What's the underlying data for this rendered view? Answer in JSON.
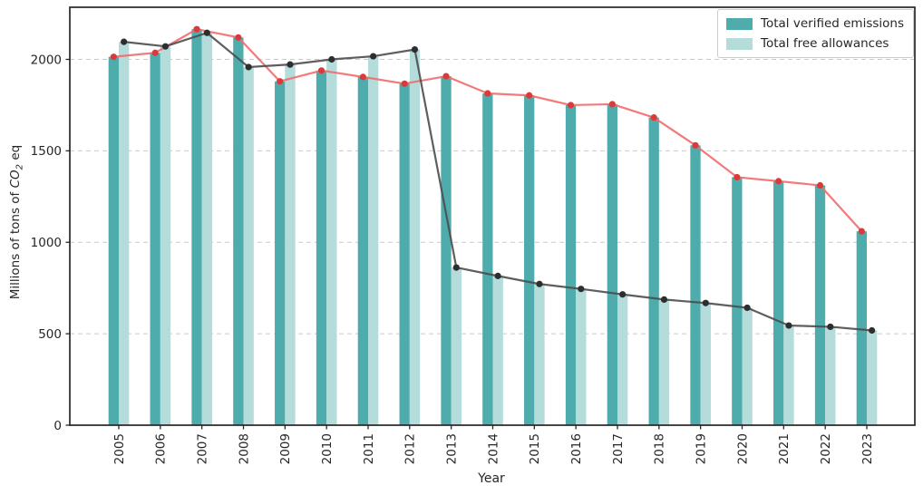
{
  "chart_data": {
    "type": "bar",
    "title": "",
    "xlabel": "Year",
    "ylabel": "Millions of tons of CO2 eq",
    "ylabel_parts": {
      "prefix": "Millions of tons of ",
      "formula": "CO",
      "subscript": "2",
      "suffix": " eq"
    },
    "categories": [
      "2005",
      "2006",
      "2007",
      "2008",
      "2009",
      "2010",
      "2011",
      "2012",
      "2013",
      "2014",
      "2015",
      "2016",
      "2017",
      "2018",
      "2019",
      "2020",
      "2021",
      "2022",
      "2023"
    ],
    "series": [
      {
        "name": "Total verified emissions",
        "bar_color": "#4FACAC",
        "line_color": "#F26B6B",
        "marker_color": "#DC3A3A",
        "values": [
          2014,
          2036,
          2165,
          2120,
          1880,
          1939,
          1904,
          1867,
          1908,
          1814,
          1803,
          1750,
          1755,
          1682,
          1530,
          1356,
          1334,
          1311,
          1060
        ]
      },
      {
        "name": "Total free allowances",
        "bar_color": "#B3DCDB",
        "line_color": "#4D4D4D",
        "marker_color": "#2E2E2E",
        "values": [
          2096,
          2071,
          2145,
          1958,
          1972,
          2000,
          2017,
          2054,
          862,
          816,
          772,
          745,
          715,
          687,
          668,
          642,
          545,
          538,
          518
        ]
      }
    ],
    "ylim": [
      0,
      2285
    ],
    "yticks": [
      0,
      500,
      1000,
      1500,
      2000
    ],
    "grid": "horizontal-dashed",
    "grid_color": "#c9c9c9",
    "spine_color": "#262626",
    "legend_position": "upper-right"
  }
}
